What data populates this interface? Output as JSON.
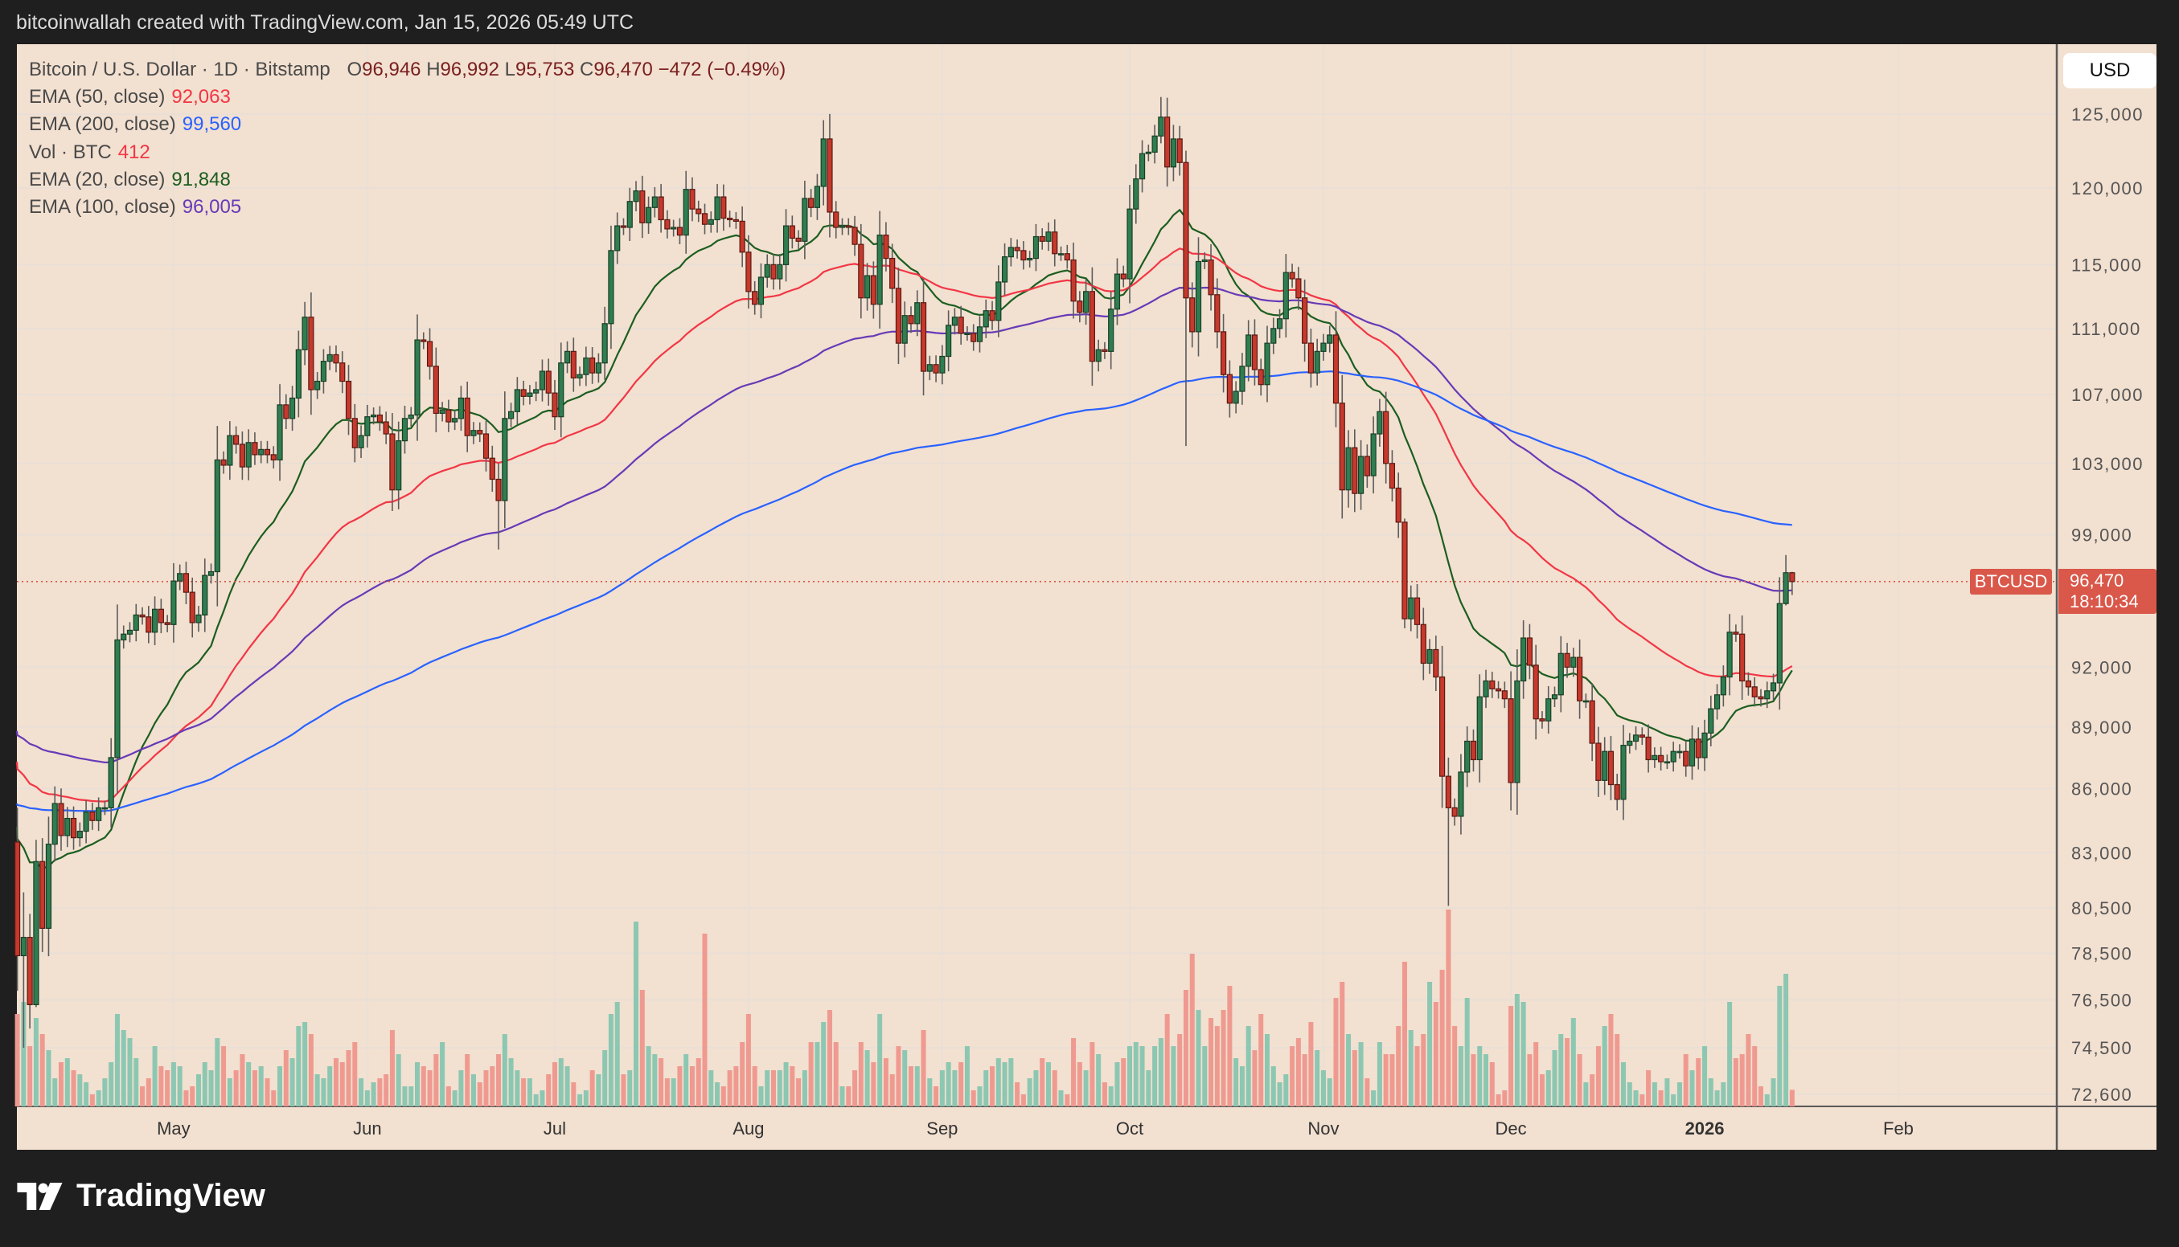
{
  "header": {
    "credit": "bitcoinwallah created with TradingView.com, Jan 15, 2026 05:49 UTC"
  },
  "legend": {
    "symbol": "Bitcoin / U.S. Dollar · 1D · Bitstamp",
    "o_label": "O",
    "o": "96,946",
    "h_label": "H",
    "h": "96,992",
    "l_label": "L",
    "l": "95,753",
    "c_label": "C",
    "c": "96,470",
    "change": "−472 (−0.49%)",
    "indicators": [
      {
        "label": "EMA (50, close)",
        "value": "92,063",
        "color": "#f23645"
      },
      {
        "label": "EMA (200, close)",
        "value": "99,560",
        "color": "#2962ff"
      },
      {
        "label": "Vol · BTC",
        "value": "412",
        "color": "#f23645"
      },
      {
        "label": "EMA (20, close)",
        "value": "91,848",
        "color": "#1b5e20"
      },
      {
        "label": "EMA (100, close)",
        "value": "96,005",
        "color": "#673ab7"
      }
    ]
  },
  "price_axis": {
    "currency": "USD",
    "ticks": [
      "125,000",
      "120,000",
      "115,000",
      "111,000",
      "107,000",
      "103,000",
      "99,000",
      "92,000",
      "89,000",
      "86,000",
      "83,000",
      "80,500",
      "78,500",
      "76,500",
      "74,500",
      "72,600"
    ],
    "last_symbol": "BTCUSD",
    "last_price": "96,470",
    "countdown": "18:10:34"
  },
  "time_axis": {
    "labels": [
      {
        "text": "May",
        "date": "2025-05-01",
        "bold": false
      },
      {
        "text": "Jun",
        "date": "2025-06-01",
        "bold": false
      },
      {
        "text": "Jul",
        "date": "2025-07-01",
        "bold": false
      },
      {
        "text": "Aug",
        "date": "2025-08-01",
        "bold": false
      },
      {
        "text": "Sep",
        "date": "2025-09-01",
        "bold": false
      },
      {
        "text": "Oct",
        "date": "2025-10-01",
        "bold": false
      },
      {
        "text": "Nov",
        "date": "2025-11-01",
        "bold": false
      },
      {
        "text": "Dec",
        "date": "2025-12-01",
        "bold": false
      },
      {
        "text": "2026",
        "date": "2026-01-01",
        "bold": true
      },
      {
        "text": "Feb",
        "date": "2026-02-01",
        "bold": false
      }
    ]
  },
  "brand": {
    "logo_text": "TradingView"
  },
  "chart_data": {
    "type": "candlestick",
    "title": "Bitcoin / U.S. Dollar · 1D · Bitstamp",
    "scale": "log",
    "ylim": [
      72600,
      127000
    ],
    "start_date": "2025-04-06",
    "price_unit": "thousand USD",
    "first_open": 83.5,
    "close": [
      78.4,
      79.2,
      76.3,
      82.6,
      79.6,
      83.4,
      85.3,
      83.8,
      84.6,
      83.7,
      84.0,
      84.9,
      84.5,
      85.1,
      85.1,
      87.5,
      93.4,
      93.7,
      93.9,
      94.7,
      94.6,
      93.8,
      95.0,
      94.3,
      94.2,
      96.5,
      96.9,
      95.9,
      94.3,
      94.7,
      96.8,
      97.0,
      103.2,
      102.9,
      104.6,
      104.1,
      102.8,
      104.2,
      103.5,
      103.8,
      103.5,
      103.2,
      106.4,
      105.6,
      106.8,
      109.7,
      111.7,
      107.3,
      107.8,
      109.0,
      109.4,
      108.9,
      107.8,
      105.6,
      103.9,
      104.6,
      105.7,
      105.8,
      105.4,
      104.7,
      101.5,
      104.3,
      105.6,
      105.8,
      110.3,
      110.2,
      108.7,
      105.9,
      106.1,
      105.4,
      105.6,
      106.8,
      104.6,
      104.9,
      104.7,
      103.3,
      102.1,
      100.9,
      105.6,
      106.0,
      107.3,
      106.9,
      107.1,
      107.3,
      108.4,
      107.1,
      105.7,
      108.9,
      109.6,
      108.0,
      108.2,
      109.2,
      108.3,
      108.9,
      111.3,
      115.9,
      117.5,
      117.4,
      119.1,
      119.8,
      117.7,
      118.7,
      119.4,
      117.9,
      117.3,
      117.4,
      116.9,
      119.9,
      118.6,
      118.3,
      117.6,
      117.9,
      119.4,
      118.0,
      117.9,
      117.8,
      115.8,
      113.3,
      112.5,
      114.2,
      115.0,
      114.1,
      115.0,
      117.5,
      116.7,
      116.5,
      119.3,
      118.7,
      120.1,
      123.3,
      118.4,
      117.4,
      117.5,
      117.4,
      116.3,
      112.9,
      114.3,
      112.5,
      116.9,
      115.4,
      113.5,
      110.1,
      111.8,
      111.3,
      112.6,
      108.4,
      108.8,
      108.3,
      109.3,
      111.2,
      111.7,
      110.7,
      110.7,
      110.2,
      111.1,
      112.1,
      111.5,
      113.9,
      115.5,
      116.1,
      115.9,
      115.3,
      115.4,
      116.8,
      116.5,
      117.1,
      115.7,
      115.7,
      115.3,
      112.7,
      112.0,
      113.3,
      109.0,
      109.7,
      109.6,
      112.2,
      114.4,
      114.1,
      118.6,
      120.6,
      122.3,
      122.4,
      123.5,
      124.8,
      121.4,
      123.3,
      121.7,
      112.9,
      110.8,
      115.2,
      115.3,
      113.1,
      110.8,
      108.2,
      106.5,
      107.2,
      108.7,
      110.6,
      108.5,
      107.6,
      110.1,
      111.0,
      111.6,
      114.5,
      114.1,
      112.9,
      110.1,
      108.3,
      109.6,
      110.1,
      110.6,
      106.5,
      101.5,
      103.9,
      101.3,
      103.4,
      102.3,
      104.7,
      106.0,
      103.0,
      101.6,
      99.7,
      94.5,
      95.6,
      94.2,
      92.2,
      92.9,
      91.5,
      86.6,
      85.1,
      84.7,
      86.8,
      88.3,
      87.4,
      90.5,
      91.3,
      90.9,
      90.8,
      90.4,
      86.3,
      91.3,
      93.5,
      92.1,
      89.4,
      89.3,
      90.4,
      90.6,
      92.7,
      92.0,
      92.5,
      90.3,
      90.3,
      88.2,
      86.4,
      87.8,
      86.2,
      85.5,
      88.1,
      88.3,
      88.6,
      88.5,
      87.4,
      87.6,
      87.3,
      87.3,
      87.8,
      87.8,
      87.1,
      88.4,
      87.5,
      88.7,
      89.9,
      90.6,
      91.5,
      93.8,
      93.7,
      91.3,
      91.0,
      90.5,
      90.4,
      90.8,
      91.2,
      95.3,
      96.946,
      96.47
    ],
    "wick_overrides": {
      "2025-04-07": [
        81.2,
        74.5
      ],
      "2025-04-09": [
        83.6,
        76.2
      ],
      "2025-06-22": [
        103.0,
        98.2
      ],
      "2025-10-06": [
        126.2,
        123.0
      ],
      "2025-10-10": [
        122.5,
        104.0
      ],
      "2025-11-14": [
        99.9,
        94.0
      ],
      "2025-11-21": [
        87.5,
        80.6
      ],
      "2026-01-14": [
        97.9,
        95.2
      ],
      "2026-01-15": [
        96.992,
        95.753
      ]
    },
    "volume_btc": [
      2300,
      2600,
      1500,
      2200,
      1800,
      1400,
      700,
      1100,
      1200,
      900,
      800,
      600,
      300,
      400,
      700,
      1100,
      2300,
      1900,
      1700,
      1200,
      500,
      700,
      1500,
      1000,
      900,
      1100,
      1000,
      400,
      500,
      800,
      1100,
      900,
      1700,
      1500,
      700,
      900,
      1300,
      1100,
      900,
      1000,
      700,
      400,
      1000,
      1400,
      1200,
      2000,
      2100,
      1800,
      800,
      700,
      1000,
      1200,
      1100,
      1400,
      1600,
      700,
      400,
      600,
      700,
      800,
      1900,
      1300,
      500,
      500,
      1100,
      1000,
      900,
      1300,
      1600,
      500,
      400,
      900,
      1300,
      800,
      600,
      900,
      1000,
      1300,
      1800,
      1200,
      900,
      700,
      700,
      300,
      400,
      800,
      1100,
      1200,
      1000,
      600,
      300,
      400,
      900,
      800,
      1400,
      2300,
      2600,
      800,
      900,
      4600,
      2900,
      1500,
      1300,
      1200,
      700,
      700,
      1000,
      1300,
      1000,
      1200,
      4300,
      900,
      600,
      500,
      900,
      1000,
      1600,
      2300,
      1000,
      500,
      900,
      900,
      900,
      1100,
      1000,
      700,
      900,
      1600,
      1600,
      2100,
      2400,
      1600,
      500,
      500,
      900,
      1600,
      1400,
      1100,
      2300,
      1200,
      800,
      1500,
      1400,
      1000,
      1000,
      1900,
      700,
      500,
      900,
      1100,
      900,
      1100,
      1500,
      400,
      500,
      900,
      1000,
      1200,
      1100,
      1200,
      600,
      300,
      700,
      900,
      1200,
      1100,
      900,
      400,
      300,
      1700,
      1100,
      900,
      1600,
      1300,
      600,
      500,
      1100,
      1200,
      1500,
      1600,
      1500,
      900,
      1500,
      1700,
      2300,
      1500,
      1800,
      2900,
      3800,
      2400,
      1500,
      2200,
      2000,
      2400,
      3000,
      1200,
      1000,
      2000,
      1400,
      2300,
      1800,
      1000,
      600,
      800,
      1500,
      1700,
      1300,
      2100,
      1400,
      900,
      700,
      2700,
      3100,
      1800,
      1400,
      1600,
      700,
      400,
      1600,
      1300,
      1300,
      2000,
      3600,
      1900,
      1500,
      1800,
      3100,
      2600,
      3400,
      4900,
      2000,
      1500,
      2700,
      1300,
      1500,
      1300,
      1100,
      300,
      400,
      2500,
      2800,
      2600,
      1300,
      1600,
      800,
      900,
      1400,
      1800,
      1700,
      2200,
      1300,
      600,
      800,
      1500,
      2000,
      2300,
      1800,
      1100,
      600,
      400,
      300,
      900,
      600,
      400,
      700,
      300,
      600,
      1300,
      900,
      1200,
      1500,
      700,
      400,
      600,
      2600,
      1200,
      1300,
      1800,
      1500,
      500,
      300,
      700,
      3000,
      3300,
      412
    ],
    "ema_seeds": {
      "20": 84.2,
      "50": 87.3,
      "100": 88.8,
      "200": 85.3
    },
    "ema_colors": {
      "20": "#1b5e20",
      "50": "#f23645",
      "100": "#673ab7",
      "200": "#2962ff"
    },
    "colors": {
      "up": "#2f7d50",
      "down": "#c6392c",
      "vol_up": "#8cc7b2",
      "vol_down": "#ef9a90",
      "last_price": "#d9584a"
    }
  }
}
